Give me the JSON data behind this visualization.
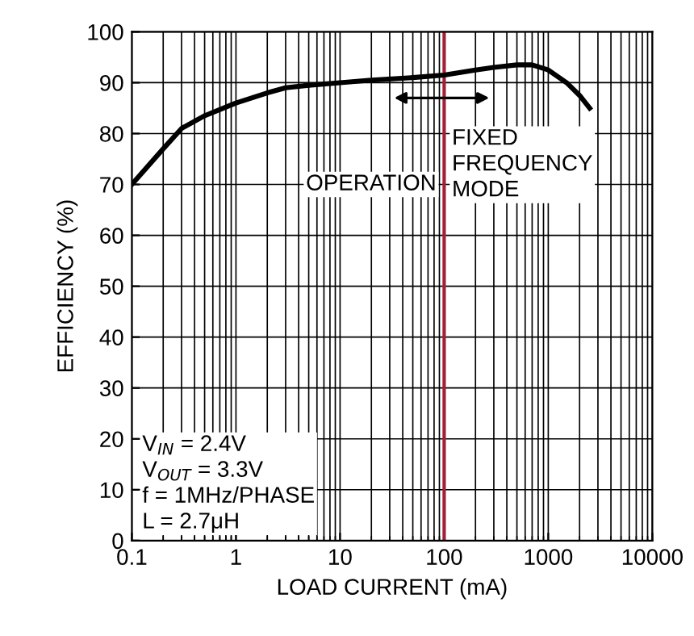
{
  "chart_data": {
    "type": "line",
    "xlabel": "LOAD CURRENT (mA)",
    "ylabel": "EFFICIENCY (%)",
    "x": [
      0.1,
      0.2,
      0.3,
      0.5,
      1,
      2,
      3,
      5,
      10,
      20,
      50,
      100,
      200,
      300,
      500,
      700,
      1000,
      1500,
      2000,
      2500
    ],
    "series": [
      {
        "color": "#000000",
        "values": [
          70,
          77,
          81,
          83.5,
          86,
          88,
          89,
          89.5,
          90,
          90.5,
          91,
          91.5,
          92.5,
          93,
          93.5,
          93.5,
          92.5,
          90,
          87.5,
          85
        ]
      }
    ],
    "log": "x",
    "xlim": [
      0.1,
      10000
    ],
    "xticks": [
      0.1,
      1,
      10,
      100,
      1000,
      10000
    ],
    "ylim": [
      0,
      100
    ],
    "yticks": [
      0,
      10,
      20,
      30,
      40,
      50,
      60,
      70,
      80,
      90,
      100
    ],
    "grid": true,
    "marker": "none",
    "line_style": "solid",
    "ref_lines": [
      {
        "axis": "x",
        "value": 100,
        "color": "#a0203a"
      }
    ],
    "annotations": [
      "OPERATION",
      "FIXED\nFREQUENCY\nMODE",
      "V$_{IN}$ = 2.4V\nV$_{OUT}$ = 3.3V\nf = 1MHz/PHASE\nL = 2.7μH"
    ]
  }
}
